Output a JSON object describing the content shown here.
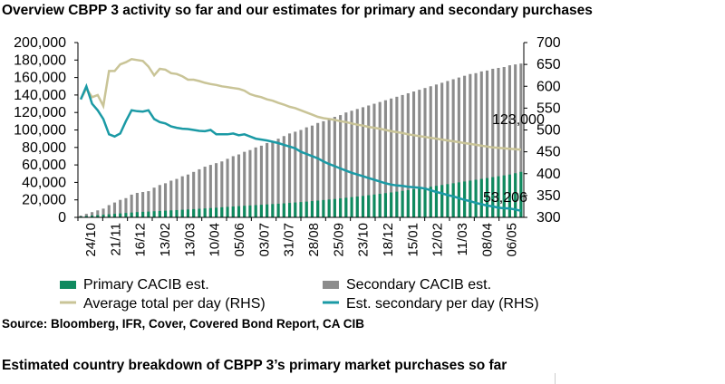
{
  "title": "Overview CBPP 3 activity so far and our estimates for primary and secondary purchases",
  "source": "Source: Bloomberg, IFR, Cover, Covered Bond Report, CA CIB",
  "subtitle2": "Estimated country breakdown of CBPP 3’s primary market purchases so far",
  "colors": {
    "primary": "#0f8a5f",
    "secondary": "#8c8c8c",
    "average_line": "#c9c497",
    "est_line": "#1b9aa5"
  },
  "chart_data": {
    "type": "bar",
    "left_axis": {
      "ticks": [
        0,
        20000,
        40000,
        60000,
        80000,
        100000,
        120000,
        140000,
        160000,
        180000,
        200000
      ],
      "tick_labels": [
        "0",
        "20,000",
        "40,000",
        "60,000",
        "80,000",
        "100,000",
        "120,000",
        "140,000",
        "160,000",
        "180,000",
        "200,000"
      ],
      "ylim": [
        0,
        200000
      ]
    },
    "right_axis": {
      "ticks": [
        300,
        350,
        400,
        450,
        500,
        550,
        600,
        650,
        700
      ],
      "tick_labels": [
        "300",
        "350",
        "400",
        "450",
        "500",
        "550",
        "600",
        "650",
        "700"
      ],
      "ylim": [
        300,
        700
      ]
    },
    "x_tick_labels": [
      "24/10",
      "21/11",
      "16/12",
      "13/02",
      "13/03",
      "10/04",
      "05/06",
      "03/07",
      "31/07",
      "28/08",
      "25/09",
      "23/10",
      "18/12",
      "15/01",
      "12/02",
      "11/03",
      "08/04",
      "06/05"
    ],
    "secondary_bars": [
      2000,
      4000,
      6000,
      8000,
      10000,
      14000,
      17000,
      20000,
      22000,
      26000,
      28000,
      29000,
      30000,
      34000,
      37000,
      39000,
      42000,
      44000,
      47000,
      49000,
      52000,
      55000,
      58000,
      60000,
      62000,
      64000,
      67000,
      70000,
      72000,
      75000,
      77000,
      80000,
      82000,
      85000,
      87000,
      90000,
      93000,
      96000,
      98000,
      100000,
      103000,
      105000,
      108000,
      110000,
      113000,
      115000,
      117000,
      120000,
      122000,
      124000,
      126000,
      128000,
      130000,
      132000,
      134000,
      136000,
      138000,
      140000,
      142000,
      144000,
      146000,
      148000,
      150000,
      152000,
      154000,
      156000,
      158000,
      160000,
      162000,
      164000,
      165000,
      167000,
      168000,
      170000,
      171000,
      172000,
      174000,
      175000,
      176000
    ],
    "primary_bars": [
      1000,
      1500,
      2000,
      2500,
      3000,
      3500,
      4000,
      4500,
      5000,
      5500,
      6000,
      6300,
      6600,
      7000,
      7300,
      7600,
      8000,
      8300,
      8700,
      9000,
      9400,
      9800,
      10200,
      10600,
      11000,
      11500,
      12000,
      12400,
      12800,
      13200,
      13600,
      14000,
      14400,
      14800,
      15200,
      15600,
      16000,
      16500,
      17000,
      17500,
      18000,
      18600,
      19200,
      19800,
      20400,
      21000,
      21700,
      22400,
      23100,
      23800,
      24500,
      25300,
      26100,
      26900,
      27700,
      28500,
      29400,
      30300,
      31200,
      32100,
      33000,
      34000,
      35000,
      36000,
      37000,
      38000,
      39000,
      40000,
      41000,
      42000,
      43000,
      44000,
      45000,
      46000,
      47000,
      48000,
      49000,
      50500,
      52000
    ],
    "series": [
      {
        "name": "Primary CACIB est.",
        "kind": "bar",
        "axis": "left"
      },
      {
        "name": "Secondary CACIB est.",
        "kind": "bar",
        "axis": "left"
      },
      {
        "name": "Average total per day (RHS)",
        "kind": "line",
        "axis": "right",
        "points": [
          [
            0,
            570
          ],
          [
            1,
            595
          ],
          [
            2,
            575
          ],
          [
            3,
            580
          ],
          [
            4,
            555
          ],
          [
            5,
            635
          ],
          [
            6,
            635
          ],
          [
            7,
            650
          ],
          [
            8,
            655
          ],
          [
            9,
            662
          ],
          [
            10,
            660
          ],
          [
            11,
            658
          ],
          [
            12,
            645
          ],
          [
            13,
            625
          ],
          [
            14,
            640
          ],
          [
            15,
            638
          ],
          [
            16,
            630
          ],
          [
            17,
            628
          ],
          [
            18,
            623
          ],
          [
            19,
            615
          ],
          [
            20,
            615
          ],
          [
            21,
            612
          ],
          [
            22,
            608
          ],
          [
            23,
            605
          ],
          [
            24,
            603
          ],
          [
            25,
            600
          ],
          [
            26,
            598
          ],
          [
            27,
            596
          ],
          [
            28,
            594
          ],
          [
            29,
            590
          ],
          [
            30,
            582
          ],
          [
            31,
            578
          ],
          [
            32,
            575
          ],
          [
            33,
            570
          ],
          [
            34,
            567
          ],
          [
            35,
            562
          ],
          [
            36,
            558
          ],
          [
            37,
            553
          ],
          [
            38,
            550
          ],
          [
            39,
            545
          ],
          [
            40,
            540
          ],
          [
            41,
            535
          ],
          [
            42,
            530
          ],
          [
            43,
            527
          ],
          [
            44,
            525
          ],
          [
            45,
            523
          ],
          [
            46,
            520
          ],
          [
            47,
            518
          ],
          [
            48,
            515
          ],
          [
            49,
            512
          ],
          [
            50,
            510
          ],
          [
            51,
            507
          ],
          [
            52,
            505
          ],
          [
            53,
            503
          ],
          [
            54,
            500
          ],
          [
            55,
            497
          ],
          [
            56,
            495
          ],
          [
            57,
            493
          ],
          [
            58,
            490
          ],
          [
            59,
            488
          ],
          [
            60,
            486
          ],
          [
            61,
            484
          ],
          [
            62,
            482
          ],
          [
            63,
            480
          ],
          [
            64,
            478
          ],
          [
            65,
            476
          ],
          [
            66,
            474
          ],
          [
            67,
            472
          ],
          [
            68,
            470
          ],
          [
            69,
            468
          ],
          [
            70,
            466
          ],
          [
            71,
            464
          ],
          [
            72,
            462
          ],
          [
            73,
            460
          ],
          [
            74,
            459
          ],
          [
            75,
            458
          ],
          [
            76,
            457
          ],
          [
            77,
            456
          ],
          [
            78,
            455
          ]
        ]
      },
      {
        "name": "Est. secondary per day (RHS)",
        "kind": "line",
        "axis": "right",
        "points": [
          [
            0,
            570
          ],
          [
            1,
            600
          ],
          [
            2,
            560
          ],
          [
            3,
            545
          ],
          [
            4,
            525
          ],
          [
            5,
            490
          ],
          [
            6,
            485
          ],
          [
            7,
            492
          ],
          [
            8,
            520
          ],
          [
            9,
            545
          ],
          [
            10,
            543
          ],
          [
            11,
            542
          ],
          [
            12,
            545
          ],
          [
            13,
            525
          ],
          [
            14,
            518
          ],
          [
            15,
            515
          ],
          [
            16,
            508
          ],
          [
            17,
            505
          ],
          [
            18,
            503
          ],
          [
            19,
            502
          ],
          [
            20,
            500
          ],
          [
            21,
            498
          ],
          [
            22,
            497
          ],
          [
            23,
            500
          ],
          [
            24,
            490
          ],
          [
            25,
            490
          ],
          [
            26,
            490
          ],
          [
            27,
            492
          ],
          [
            28,
            488
          ],
          [
            29,
            490
          ],
          [
            30,
            485
          ],
          [
            31,
            480
          ],
          [
            32,
            478
          ],
          [
            33,
            476
          ],
          [
            34,
            473
          ],
          [
            35,
            470
          ],
          [
            36,
            466
          ],
          [
            37,
            462
          ],
          [
            38,
            458
          ],
          [
            39,
            450
          ],
          [
            40,
            445
          ],
          [
            41,
            440
          ],
          [
            42,
            435
          ],
          [
            43,
            428
          ],
          [
            44,
            422
          ],
          [
            45,
            417
          ],
          [
            46,
            412
          ],
          [
            47,
            407
          ],
          [
            48,
            402
          ],
          [
            49,
            398
          ],
          [
            50,
            394
          ],
          [
            51,
            390
          ],
          [
            52,
            386
          ],
          [
            53,
            382
          ],
          [
            54,
            378
          ],
          [
            55,
            375
          ],
          [
            56,
            373
          ],
          [
            57,
            372
          ],
          [
            58,
            370
          ],
          [
            59,
            369
          ],
          [
            60,
            368
          ],
          [
            61,
            366
          ],
          [
            62,
            362
          ],
          [
            63,
            358
          ],
          [
            64,
            355
          ],
          [
            65,
            351
          ],
          [
            66,
            348
          ],
          [
            67,
            344
          ],
          [
            68,
            340
          ],
          [
            69,
            337
          ],
          [
            70,
            333
          ],
          [
            71,
            330
          ],
          [
            72,
            327
          ],
          [
            73,
            325
          ],
          [
            74,
            322
          ],
          [
            75,
            321
          ],
          [
            76,
            320
          ],
          [
            77,
            318
          ],
          [
            78,
            315
          ]
        ]
      }
    ],
    "annotations": [
      "123,000",
      "53,206"
    ]
  }
}
